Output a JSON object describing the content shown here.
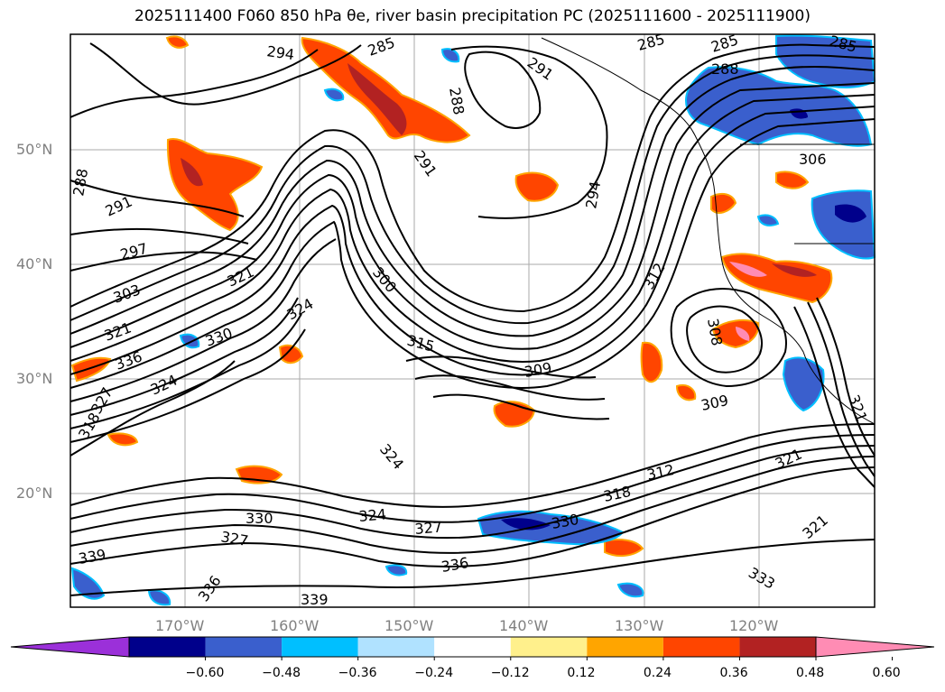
{
  "title": "2025111400 F060 850 hPa θe, river basin precipitation PC (2025111600 - 2025111900)",
  "latitude_labels": [
    "50°N",
    "40°N",
    "30°N",
    "20°N"
  ],
  "longitude_labels": [
    "170°W",
    "160°W",
    "150°W",
    "140°W",
    "130°W",
    "120°W"
  ],
  "colorbar": {
    "ticks": [
      "−0.60",
      "−0.48",
      "−0.36",
      "−0.24",
      "−0.12",
      "0.12",
      "0.24",
      "0.36",
      "0.48",
      "0.60"
    ],
    "colors": [
      "#9b30d9",
      "#00008b",
      "#3a5fcd",
      "#00bfff",
      "#b0e2ff",
      "#ffffff",
      "#fff08c",
      "#ffa500",
      "#ff4500",
      "#b22222",
      "#ff8cb4"
    ]
  },
  "contour_labels": [
    "285",
    "285",
    "285",
    "285",
    "288",
    "288",
    "288",
    "291",
    "291",
    "291",
    "294",
    "294",
    "297",
    "300",
    "303",
    "306",
    "309",
    "309",
    "309",
    "312",
    "312",
    "315",
    "318",
    "318",
    "321",
    "321",
    "321",
    "321",
    "324",
    "324",
    "324",
    "324",
    "327",
    "327",
    "327",
    "330",
    "330",
    "330",
    "333",
    "336",
    "336",
    "336",
    "339",
    "339",
    "321",
    "308"
  ]
}
